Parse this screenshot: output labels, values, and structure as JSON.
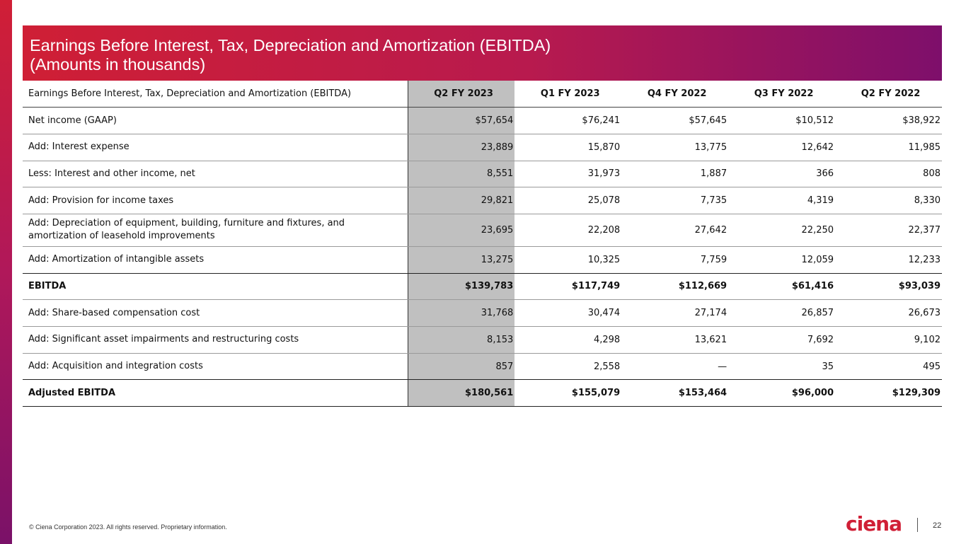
{
  "title": {
    "line1": "Earnings Before Interest, Tax, Depreciation and Amortization (EBITDA)",
    "line2": "(Amounts in thousands)"
  },
  "table": {
    "header": [
      "Earnings Before Interest, Tax, Depreciation and Amortization (EBITDA)",
      "Q2 FY 2023",
      "Q1 FY 2023",
      "Q4 FY 2022",
      "Q3 FY 2022",
      "Q2 FY 2022"
    ],
    "rows": [
      {
        "label": "Net income (GAAP)",
        "values": [
          "$57,654",
          "$76,241",
          "$57,645",
          "$10,512",
          "$38,922"
        ]
      },
      {
        "label": "Add: Interest expense",
        "values": [
          "23,889",
          "15,870",
          "13,775",
          "12,642",
          "11,985"
        ]
      },
      {
        "label": "Less: Interest and other income, net",
        "values": [
          "8,551",
          "31,973",
          "1,887",
          "366",
          "808"
        ]
      },
      {
        "label": "Add: Provision for income taxes",
        "values": [
          "29,821",
          "25,078",
          "7,735",
          "4,319",
          "8,330"
        ]
      },
      {
        "label": "Add: Depreciation of equipment, building, furniture and fixtures, and amortization of leasehold improvements",
        "values": [
          "23,695",
          "22,208",
          "27,642",
          "22,250",
          "22,377"
        ]
      },
      {
        "label": "Add: Amortization of intangible assets",
        "values": [
          "13,275",
          "10,325",
          "7,759",
          "12,059",
          "12,233"
        ]
      },
      {
        "label": "EBITDA",
        "values": [
          "$139,783",
          "$117,749",
          "$112,669",
          "$61,416",
          "$93,039"
        ]
      },
      {
        "label": "Add: Share-based compensation cost",
        "values": [
          "31,768",
          "30,474",
          "27,174",
          "26,857",
          "26,673"
        ]
      },
      {
        "label": "Add: Significant asset impairments and restructuring costs",
        "values": [
          "8,153",
          "4,298",
          "13,621",
          "7,692",
          "9,102"
        ]
      },
      {
        "label": "Add: Acquisition and integration costs",
        "values": [
          "857",
          "2,558",
          "—",
          "35",
          "495"
        ]
      },
      {
        "label": "Adjusted EBITDA",
        "values": [
          "$180,561",
          "$155,079",
          "$153,464",
          "$96,000",
          "$129,309"
        ]
      }
    ]
  },
  "footer": {
    "copyright": "© Ciena Corporation 2023. All rights reserved. Proprietary information.",
    "logo": "ciena",
    "page": "22"
  }
}
